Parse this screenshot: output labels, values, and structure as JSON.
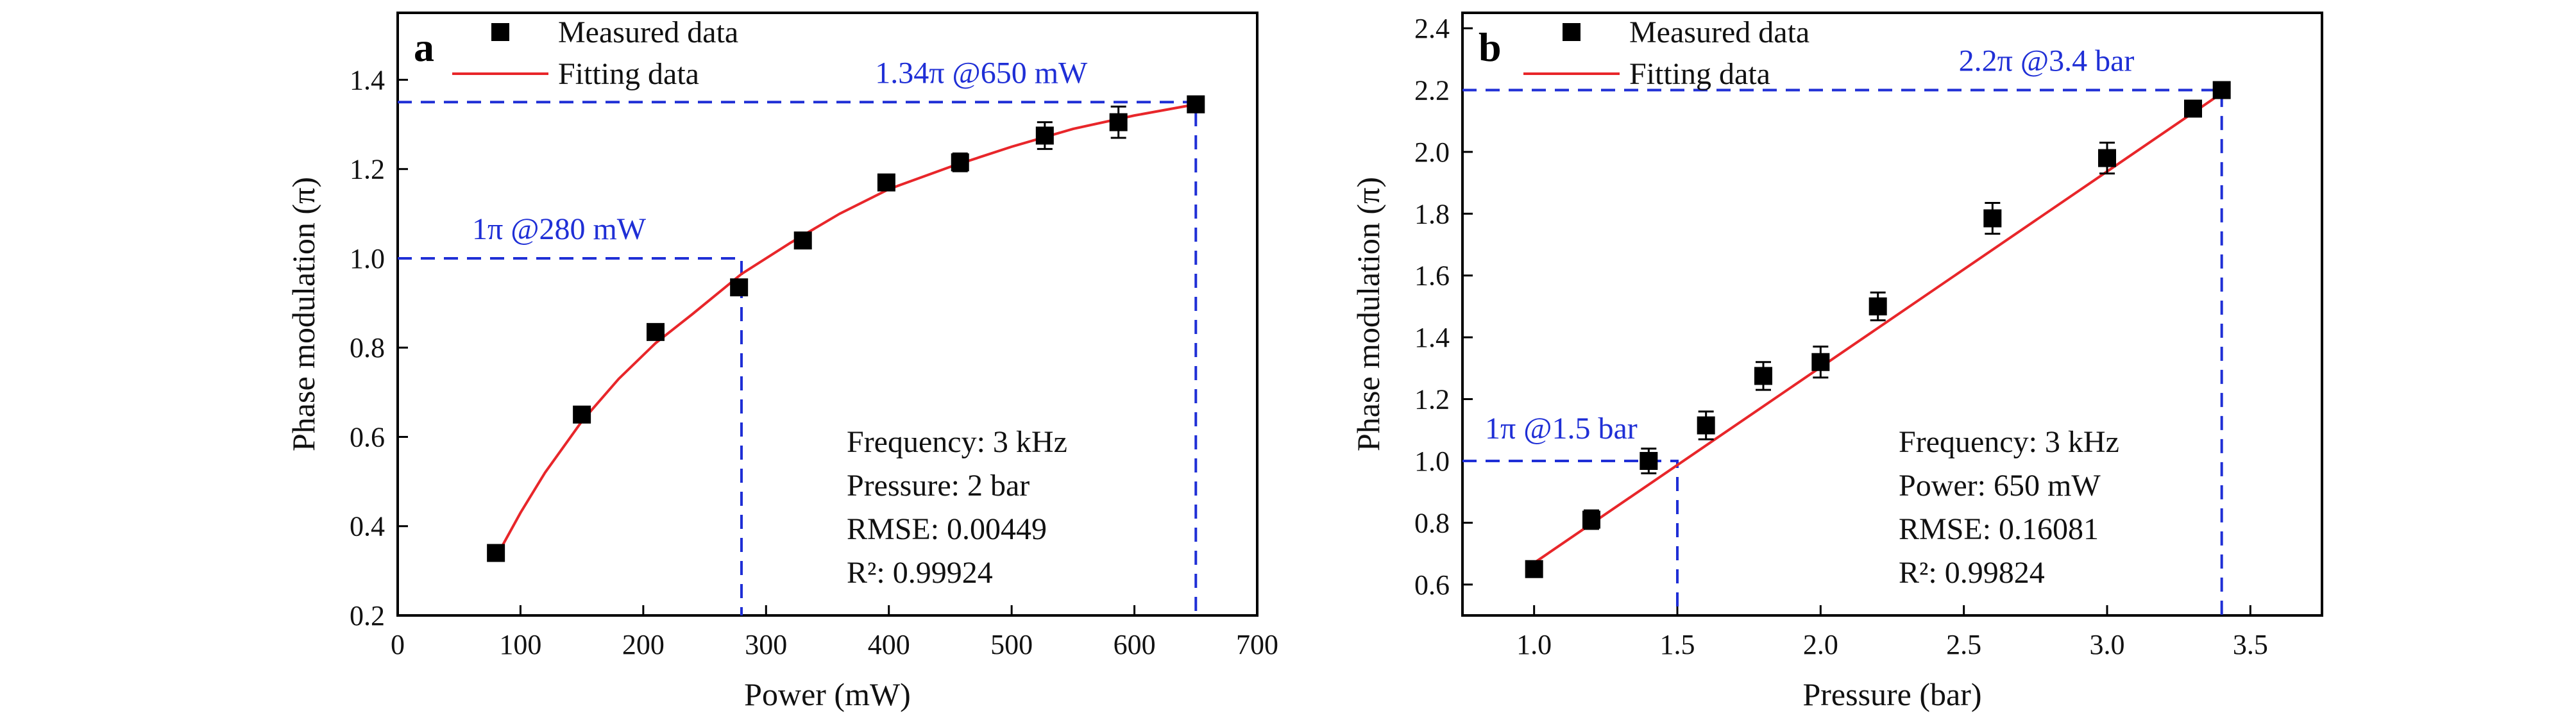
{
  "chart_data": [
    {
      "panel": "a",
      "type": "scatter",
      "xlabel": "Power (mW)",
      "ylabel": "Phase modulation (π)",
      "xlim": [
        0,
        700
      ],
      "ylim": [
        0.2,
        1.55
      ],
      "xticks": [
        0,
        100,
        200,
        300,
        400,
        500,
        600,
        700
      ],
      "yticks": [
        0.2,
        0.4,
        0.6,
        0.8,
        1.0,
        1.2,
        1.4
      ],
      "xtick_labels": [
        "0",
        "100",
        "200",
        "300",
        "400",
        "500",
        "600",
        "700"
      ],
      "ytick_labels": [
        "0.2",
        "0.4",
        "0.6",
        "0.8",
        "1.0",
        "1.2",
        "1.4"
      ],
      "series": [
        {
          "name": "Measured data",
          "kind": "marker",
          "x": [
            80,
            150,
            210,
            278,
            330,
            398,
            458,
            527,
            587,
            650
          ],
          "y": [
            0.34,
            0.65,
            0.835,
            0.935,
            1.04,
            1.17,
            1.215,
            1.275,
            1.305,
            1.345
          ],
          "err": [
            0.01,
            0.01,
            0.01,
            0.015,
            0.01,
            0.01,
            0.02,
            0.03,
            0.035,
            0.01
          ]
        },
        {
          "name": "Fitting data",
          "kind": "line",
          "x": [
            80,
            100,
            120,
            150,
            180,
            210,
            240,
            280,
            320,
            360,
            400,
            450,
            500,
            550,
            600,
            650
          ],
          "y": [
            0.33,
            0.43,
            0.52,
            0.635,
            0.73,
            0.81,
            0.875,
            0.965,
            1.035,
            1.1,
            1.155,
            1.205,
            1.25,
            1.29,
            1.32,
            1.345
          ]
        }
      ],
      "legend": {
        "position": "top-left",
        "items": [
          "Measured data",
          "Fitting data"
        ]
      },
      "annotations": [
        {
          "text": "1π @280 mW",
          "x": 280,
          "y": 1.0
        },
        {
          "text": "1.34π @650 mW",
          "x": 650,
          "y": 1.35
        }
      ],
      "notes": [
        "Frequency: 3 kHz",
        "Pressure: 2 bar",
        "RMSE: 0.00449",
        "R²: 0.99924"
      ],
      "colors": {
        "marker": "#000000",
        "fit": "#e8262a",
        "guide": "#1f2fd6"
      },
      "grid": false
    },
    {
      "panel": "b",
      "type": "scatter",
      "xlabel": "Pressure (bar)",
      "ylabel": "Phase modulation (π)",
      "xlim": [
        0.75,
        3.75
      ],
      "ylim": [
        0.5,
        2.45
      ],
      "xticks": [
        1.0,
        1.5,
        2.0,
        2.5,
        3.0,
        3.5
      ],
      "yticks": [
        0.6,
        0.8,
        1.0,
        1.2,
        1.4,
        1.6,
        1.8,
        2.0,
        2.2,
        2.4
      ],
      "xtick_labels": [
        "1.0",
        "1.5",
        "2.0",
        "2.5",
        "3.0",
        "3.5"
      ],
      "ytick_labels": [
        "0.6",
        "0.8",
        "1.0",
        "1.2",
        "1.4",
        "1.6",
        "1.8",
        "2.0",
        "2.2",
        "2.4"
      ],
      "series": [
        {
          "name": "Measured data",
          "kind": "marker",
          "x": [
            1.0,
            1.2,
            1.4,
            1.6,
            1.8,
            2.0,
            2.2,
            2.6,
            3.0,
            3.3,
            3.4
          ],
          "y": [
            0.65,
            0.81,
            1.0,
            1.115,
            1.275,
            1.32,
            1.5,
            1.785,
            1.98,
            2.14,
            2.2
          ],
          "err": [
            0.02,
            0.03,
            0.04,
            0.045,
            0.045,
            0.05,
            0.045,
            0.05,
            0.05,
            0.02,
            0.02
          ]
        },
        {
          "name": "Fitting data",
          "kind": "line",
          "x": [
            1.0,
            3.4
          ],
          "y": [
            0.67,
            2.19
          ]
        }
      ],
      "legend": {
        "position": "top-left",
        "items": [
          "Measured data",
          "Fitting data"
        ]
      },
      "annotations": [
        {
          "text": "1π @1.5 bar",
          "x": 1.5,
          "y": 1.0
        },
        {
          "text": "2.2π @3.4 bar",
          "x": 3.4,
          "y": 2.2
        }
      ],
      "notes": [
        "Frequency: 3 kHz",
        "Power: 650 mW",
        "RMSE: 0.16081",
        "R²: 0.99824"
      ],
      "colors": {
        "marker": "#000000",
        "fit": "#e8262a",
        "guide": "#1f2fd6"
      },
      "grid": false
    }
  ]
}
